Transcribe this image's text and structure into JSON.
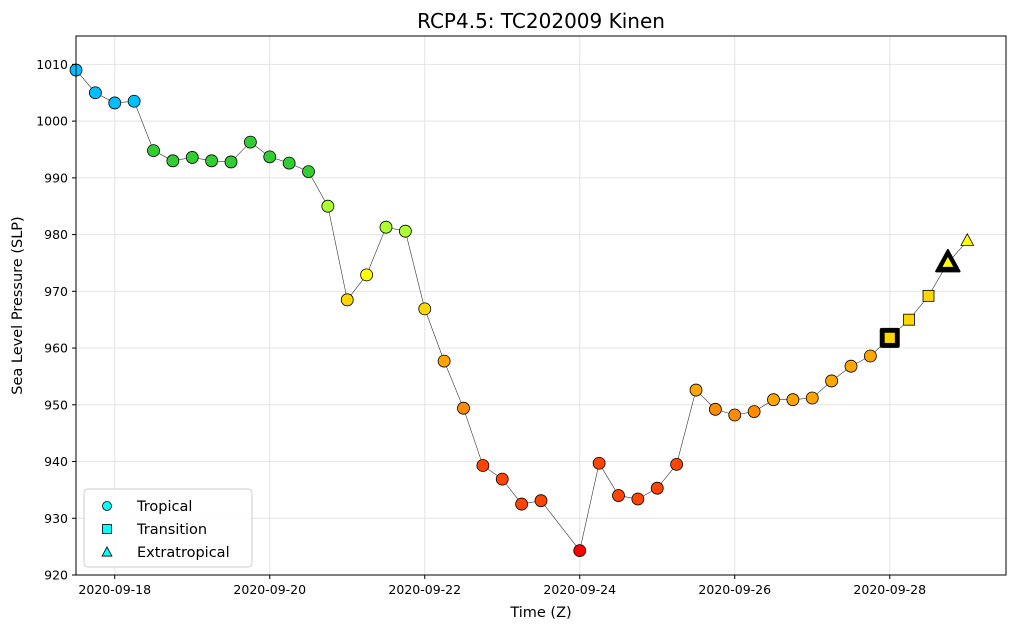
{
  "chart_data": {
    "type": "scatter",
    "title": "RCP4.5: TC202009 Kinen",
    "xlabel": "Time (Z)",
    "ylabel": "Sea Level Pressure (SLP)",
    "xlim": [
      "2020-09-17T12:00",
      "2020-09-29T12:00"
    ],
    "ylim": [
      920,
      1015
    ],
    "x_ticks": [
      "2020-09-18",
      "2020-09-20",
      "2020-09-22",
      "2020-09-24",
      "2020-09-26",
      "2020-09-28"
    ],
    "y_ticks": [
      920,
      930,
      940,
      950,
      960,
      970,
      980,
      990,
      1000,
      1010
    ],
    "grid": true,
    "legend_position": "lower-left",
    "legend": [
      {
        "label": "Tropical",
        "marker": "circle",
        "color": "#00ffff"
      },
      {
        "label": "Transition",
        "marker": "square",
        "color": "#00ffff"
      },
      {
        "label": "Extratropical",
        "marker": "triangle",
        "color": "#00ffff"
      }
    ],
    "series": [
      {
        "points": [
          {
            "t": "2020-09-17T12:00",
            "slp": 1009.0,
            "phase": "tropical",
            "color": "#00bfff"
          },
          {
            "t": "2020-09-17T18:00",
            "slp": 1005.0,
            "phase": "tropical",
            "color": "#00bfff"
          },
          {
            "t": "2020-09-18T00:00",
            "slp": 1003.2,
            "phase": "tropical",
            "color": "#00bfff"
          },
          {
            "t": "2020-09-18T06:00",
            "slp": 1003.5,
            "phase": "tropical",
            "color": "#00bfff"
          },
          {
            "t": "2020-09-18T12:00",
            "slp": 994.8,
            "phase": "tropical",
            "color": "#32cd32"
          },
          {
            "t": "2020-09-18T18:00",
            "slp": 993.0,
            "phase": "tropical",
            "color": "#32cd32"
          },
          {
            "t": "2020-09-19T00:00",
            "slp": 993.6,
            "phase": "tropical",
            "color": "#32cd32"
          },
          {
            "t": "2020-09-19T06:00",
            "slp": 993.0,
            "phase": "tropical",
            "color": "#32cd32"
          },
          {
            "t": "2020-09-19T12:00",
            "slp": 992.8,
            "phase": "tropical",
            "color": "#32cd32"
          },
          {
            "t": "2020-09-19T18:00",
            "slp": 996.3,
            "phase": "tropical",
            "color": "#32cd32"
          },
          {
            "t": "2020-09-20T00:00",
            "slp": 993.7,
            "phase": "tropical",
            "color": "#32cd32"
          },
          {
            "t": "2020-09-20T06:00",
            "slp": 992.6,
            "phase": "tropical",
            "color": "#32cd32"
          },
          {
            "t": "2020-09-20T12:00",
            "slp": 991.1,
            "phase": "tropical",
            "color": "#32cd32"
          },
          {
            "t": "2020-09-20T18:00",
            "slp": 985.0,
            "phase": "tropical",
            "color": "#adff2f"
          },
          {
            "t": "2020-09-21T00:00",
            "slp": 968.5,
            "phase": "tropical",
            "color": "#ffd700"
          },
          {
            "t": "2020-09-21T06:00",
            "slp": 972.9,
            "phase": "tropical",
            "color": "#ffff00"
          },
          {
            "t": "2020-09-21T12:00",
            "slp": 981.3,
            "phase": "tropical",
            "color": "#adff2f"
          },
          {
            "t": "2020-09-21T18:00",
            "slp": 980.6,
            "phase": "tropical",
            "color": "#adff2f"
          },
          {
            "t": "2020-09-22T00:00",
            "slp": 966.9,
            "phase": "tropical",
            "color": "#ffd700"
          },
          {
            "t": "2020-09-22T06:00",
            "slp": 957.7,
            "phase": "tropical",
            "color": "#ffa500"
          },
          {
            "t": "2020-09-22T12:00",
            "slp": 949.4,
            "phase": "tropical",
            "color": "#ff8c00"
          },
          {
            "t": "2020-09-22T18:00",
            "slp": 939.3,
            "phase": "tropical",
            "color": "#ff4500"
          },
          {
            "t": "2020-09-23T00:00",
            "slp": 936.9,
            "phase": "tropical",
            "color": "#ff4500"
          },
          {
            "t": "2020-09-23T06:00",
            "slp": 932.5,
            "phase": "tropical",
            "color": "#ff4500"
          },
          {
            "t": "2020-09-23T12:00",
            "slp": 933.1,
            "phase": "tropical",
            "color": "#ff4500"
          },
          {
            "t": "2020-09-24T00:00",
            "slp": 924.3,
            "phase": "tropical",
            "color": "#ff0000"
          },
          {
            "t": "2020-09-24T06:00",
            "slp": 939.7,
            "phase": "tropical",
            "color": "#ff4500"
          },
          {
            "t": "2020-09-24T12:00",
            "slp": 934.0,
            "phase": "tropical",
            "color": "#ff4500"
          },
          {
            "t": "2020-09-24T18:00",
            "slp": 933.4,
            "phase": "tropical",
            "color": "#ff4500"
          },
          {
            "t": "2020-09-25T00:00",
            "slp": 935.3,
            "phase": "tropical",
            "color": "#ff4500"
          },
          {
            "t": "2020-09-25T06:00",
            "slp": 939.5,
            "phase": "tropical",
            "color": "#ff4500"
          },
          {
            "t": "2020-09-25T12:00",
            "slp": 952.6,
            "phase": "tropical",
            "color": "#ffa500"
          },
          {
            "t": "2020-09-25T18:00",
            "slp": 949.2,
            "phase": "tropical",
            "color": "#ff8c00"
          },
          {
            "t": "2020-09-26T00:00",
            "slp": 948.2,
            "phase": "tropical",
            "color": "#ff8c00"
          },
          {
            "t": "2020-09-26T06:00",
            "slp": 948.8,
            "phase": "tropical",
            "color": "#ff8c00"
          },
          {
            "t": "2020-09-26T12:00",
            "slp": 950.9,
            "phase": "tropical",
            "color": "#ffa500"
          },
          {
            "t": "2020-09-26T18:00",
            "slp": 950.9,
            "phase": "tropical",
            "color": "#ffa500"
          },
          {
            "t": "2020-09-27T00:00",
            "slp": 951.2,
            "phase": "tropical",
            "color": "#ffa500"
          },
          {
            "t": "2020-09-27T06:00",
            "slp": 954.2,
            "phase": "tropical",
            "color": "#ffa500"
          },
          {
            "t": "2020-09-27T12:00",
            "slp": 956.8,
            "phase": "tropical",
            "color": "#ffa500"
          },
          {
            "t": "2020-09-27T18:00",
            "slp": 958.6,
            "phase": "tropical",
            "color": "#ffa500"
          },
          {
            "t": "2020-09-28T00:00",
            "slp": 961.8,
            "phase": "transition",
            "color": "#ffd700",
            "highlight": true
          },
          {
            "t": "2020-09-28T06:00",
            "slp": 965.0,
            "phase": "transition",
            "color": "#ffd700"
          },
          {
            "t": "2020-09-28T12:00",
            "slp": 969.2,
            "phase": "transition",
            "color": "#ffd700"
          },
          {
            "t": "2020-09-28T18:00",
            "slp": 975.0,
            "phase": "extratropical",
            "color": "#ffff00",
            "highlight": true
          },
          {
            "t": "2020-09-29T00:00",
            "slp": 978.9,
            "phase": "extratropical",
            "color": "#ffff00"
          }
        ]
      }
    ]
  }
}
